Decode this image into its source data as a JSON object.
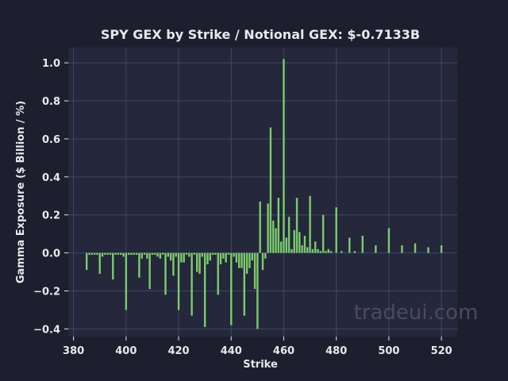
{
  "chart_data": {
    "type": "bar",
    "title": "SPY GEX by Strike / Notional GEX: $-0.7133B",
    "xlabel": "Strike",
    "ylabel": "Gamma Exposure ($ Billion / %)",
    "xlim": [
      378,
      526
    ],
    "ylim": [
      -0.44,
      1.08
    ],
    "xticks": [
      380,
      400,
      420,
      440,
      460,
      480,
      500,
      520
    ],
    "xtick_labels": [
      "380",
      "400",
      "420",
      "440",
      "460",
      "480",
      "500",
      "520"
    ],
    "yticks": [
      -0.4,
      -0.2,
      0.0,
      0.2,
      0.4,
      0.6,
      0.8,
      1.0
    ],
    "ytick_labels": [
      "−0.4",
      "−0.2",
      "0.0",
      "0.2",
      "0.4",
      "0.6",
      "0.8",
      "1.0"
    ],
    "grid": true,
    "bar_color": "#7ccc6e",
    "watermark": "tradeui.com",
    "x": [
      385,
      386,
      387,
      388,
      389,
      390,
      391,
      392,
      393,
      394,
      395,
      396,
      397,
      398,
      399,
      400,
      401,
      402,
      403,
      404,
      405,
      406,
      407,
      408,
      409,
      410,
      411,
      412,
      413,
      414,
      415,
      416,
      417,
      418,
      419,
      420,
      421,
      422,
      423,
      424,
      425,
      426,
      427,
      428,
      429,
      430,
      431,
      432,
      433,
      434,
      435,
      436,
      437,
      438,
      439,
      440,
      441,
      442,
      443,
      444,
      445,
      446,
      447,
      448,
      449,
      450,
      451,
      452,
      453,
      454,
      455,
      456,
      457,
      458,
      459,
      460,
      461,
      462,
      463,
      464,
      465,
      466,
      467,
      468,
      469,
      470,
      471,
      472,
      473,
      474,
      475,
      476,
      477,
      478,
      480,
      482,
      485,
      487,
      490,
      495,
      500,
      505,
      510,
      515,
      520
    ],
    "values": [
      -0.09,
      -0.01,
      -0.01,
      -0.01,
      -0.01,
      -0.11,
      -0.02,
      -0.01,
      -0.01,
      -0.01,
      -0.14,
      -0.01,
      -0.01,
      -0.01,
      -0.02,
      -0.3,
      -0.01,
      -0.01,
      -0.01,
      -0.01,
      -0.13,
      -0.03,
      -0.01,
      -0.03,
      -0.19,
      -0.01,
      -0.01,
      -0.02,
      -0.03,
      -0.01,
      -0.22,
      -0.02,
      -0.04,
      -0.12,
      -0.02,
      -0.3,
      -0.05,
      -0.05,
      -0.01,
      -0.02,
      -0.33,
      -0.01,
      -0.1,
      -0.11,
      -0.02,
      -0.39,
      -0.06,
      -0.04,
      -0.01,
      -0.01,
      -0.22,
      -0.06,
      -0.03,
      -0.05,
      -0.01,
      -0.38,
      -0.02,
      -0.05,
      -0.08,
      -0.08,
      -0.33,
      -0.11,
      -0.08,
      -0.04,
      -0.19,
      -0.4,
      0.27,
      -0.09,
      -0.03,
      0.26,
      0.66,
      0.17,
      0.13,
      0.29,
      0.06,
      1.02,
      0.08,
      0.19,
      0.02,
      0.12,
      0.29,
      0.11,
      0.04,
      0.09,
      0.03,
      0.3,
      0.02,
      0.06,
      0.02,
      0.01,
      0.2,
      0.01,
      0.02,
      0.01,
      0.24,
      0.01,
      0.08,
      0.01,
      0.09,
      0.04,
      0.13,
      0.04,
      0.05,
      0.03,
      0.04
    ]
  }
}
